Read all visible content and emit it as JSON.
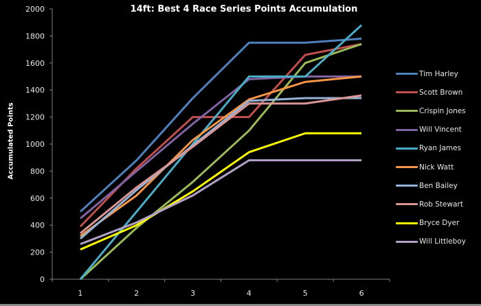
{
  "chart_data": {
    "type": "line",
    "title": "14ft: Best 4 Race Series Points Accumulation",
    "xlabel": "",
    "ylabel": "Accumulated Points",
    "x": [
      1,
      2,
      3,
      4,
      5,
      6
    ],
    "categories": [
      "1",
      "2",
      "3",
      "4",
      "5",
      "6"
    ],
    "ylim": [
      0,
      2000
    ],
    "yticks": [
      0,
      200,
      400,
      600,
      800,
      1000,
      1200,
      1400,
      1600,
      1800,
      2000
    ],
    "grid": false,
    "legend_position": "right",
    "series": [
      {
        "name": "Tim Harley",
        "color": "#4f81bd",
        "values": [
          500,
          880,
          1340,
          1750,
          1750,
          1780
        ]
      },
      {
        "name": "Scott Brown",
        "color": "#c0504d",
        "values": [
          390,
          820,
          1200,
          1200,
          1660,
          1740
        ]
      },
      {
        "name": "Crispin Jones",
        "color": "#9bbb59",
        "values": [
          0,
          380,
          720,
          1100,
          1600,
          1740
        ]
      },
      {
        "name": "Will Vincent",
        "color": "#8064a2",
        "values": [
          450,
          800,
          1150,
          1480,
          1500,
          1500
        ]
      },
      {
        "name": "Ryan James",
        "color": "#4bacc6",
        "values": [
          0,
          500,
          1000,
          1500,
          1500,
          1880
        ]
      },
      {
        "name": "Nick Watt",
        "color": "#f79646",
        "values": [
          320,
          620,
          1030,
          1330,
          1460,
          1500
        ]
      },
      {
        "name": "Ben Bailey",
        "color": "#95b3d7",
        "values": [
          300,
          660,
          990,
          1320,
          1340,
          1340
        ]
      },
      {
        "name": "Rob Stewart",
        "color": "#d99694",
        "values": [
          340,
          680,
          980,
          1300,
          1300,
          1360
        ]
      },
      {
        "name": "Bryce Dyer",
        "color": "#ffff00",
        "values": [
          220,
          400,
          650,
          940,
          1080,
          1080
        ]
      },
      {
        "name": "Will Littleboy",
        "color": "#b3a2c7",
        "values": [
          260,
          420,
          620,
          880,
          880,
          880
        ]
      }
    ]
  },
  "colors": {
    "background": "#000000",
    "axis": "#808080",
    "text": "#ffffff"
  }
}
